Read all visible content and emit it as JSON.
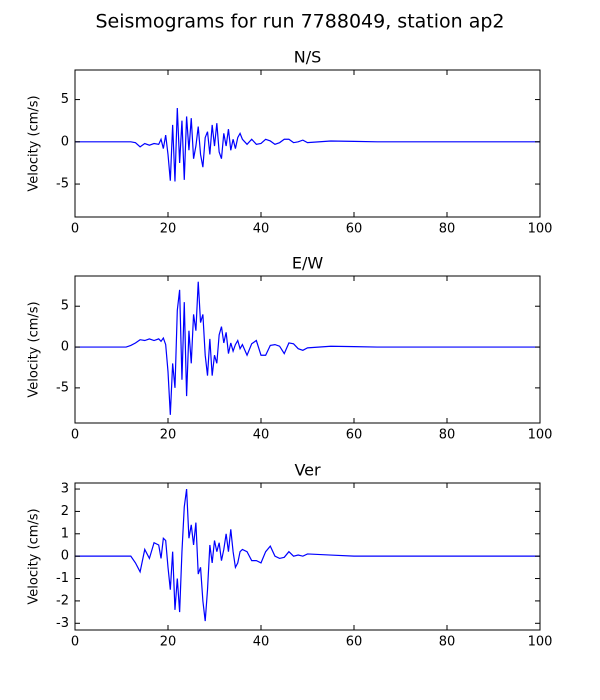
{
  "title": "Seismograms for run 7788049, station ap2",
  "chart_data": [
    {
      "type": "line",
      "title": "N/S",
      "ylabel": "Velocity (cm/s)",
      "color": "#0000ff",
      "xlim": [
        0,
        100
      ],
      "ylim": [
        -8.9,
        8.5
      ],
      "xticks": [
        0,
        20,
        40,
        60,
        80,
        100
      ],
      "yticks": [
        -5,
        0,
        5
      ],
      "x": [
        0,
        5,
        10,
        11,
        12,
        13,
        14,
        15,
        16,
        17,
        18,
        18.5,
        19,
        19.5,
        20,
        20.5,
        21,
        21.5,
        22,
        22.5,
        23,
        23.5,
        24,
        24.5,
        25,
        25.5,
        26,
        26.5,
        27,
        27.5,
        28,
        28.5,
        29,
        29.5,
        30,
        30.5,
        31,
        31.5,
        32,
        32.5,
        33,
        33.5,
        34,
        34.5,
        35,
        35.5,
        36,
        37,
        38,
        39,
        40,
        41,
        42,
        43,
        44,
        45,
        46,
        47,
        48,
        49,
        50,
        55,
        60,
        65,
        70,
        75,
        80,
        85,
        90,
        95,
        100
      ],
      "values": [
        0,
        0,
        0,
        0,
        0,
        -0.1,
        -0.6,
        -0.2,
        -0.4,
        -0.2,
        -0.3,
        0.3,
        -0.8,
        0.8,
        -1.5,
        -4.6,
        2.0,
        -4.7,
        4.0,
        -2.5,
        2.5,
        -4.5,
        3.0,
        -1.0,
        2.8,
        -2.0,
        -0.5,
        1.8,
        -1.5,
        -3.0,
        0.5,
        1.2,
        -1.5,
        2.0,
        -0.5,
        2.2,
        -1.2,
        -2.0,
        1.0,
        -0.5,
        1.5,
        -1.0,
        0.3,
        -0.8,
        0.5,
        1.0,
        0.3,
        -0.3,
        0.3,
        -0.3,
        -0.2,
        0.3,
        0.1,
        -0.3,
        -0.1,
        0.3,
        0.3,
        -0.1,
        0,
        0.2,
        -0.1,
        0.1,
        0.05,
        0,
        0,
        0,
        0,
        0,
        0,
        0,
        0
      ]
    },
    {
      "type": "line",
      "title": "E/W",
      "ylabel": "Velocity (cm/s)",
      "color": "#0000ff",
      "xlim": [
        0,
        100
      ],
      "ylim": [
        -9.3,
        8.7
      ],
      "xticks": [
        0,
        20,
        40,
        60,
        80,
        100
      ],
      "yticks": [
        -5,
        0,
        5
      ],
      "x": [
        0,
        5,
        10,
        11,
        12,
        13,
        14,
        15,
        16,
        17,
        18,
        18.5,
        19,
        19.5,
        20,
        20.5,
        21,
        21.5,
        22,
        22.5,
        23,
        23.5,
        24,
        24.5,
        25,
        25.5,
        26,
        26.5,
        27,
        27.5,
        28,
        28.5,
        29,
        29.5,
        30,
        30.5,
        31,
        31.5,
        32,
        32.5,
        33,
        33.5,
        34,
        34.5,
        35,
        35.5,
        36,
        37,
        38,
        39,
        40,
        41,
        42,
        43,
        44,
        45,
        46,
        47,
        48,
        49,
        50,
        55,
        60,
        65,
        70,
        75,
        80,
        85,
        90,
        95,
        100
      ],
      "values": [
        0,
        0,
        0,
        0,
        0.2,
        0.5,
        0.9,
        0.8,
        1.0,
        0.8,
        1.0,
        0.7,
        1.1,
        0.3,
        -3.0,
        -8.3,
        -2.0,
        -5.0,
        4.5,
        7.0,
        -4.0,
        5.5,
        -6.0,
        2.0,
        -2.0,
        4.0,
        2.0,
        8.0,
        3.0,
        4.0,
        -1.0,
        -3.5,
        1.0,
        -3.5,
        -1.0,
        -2.0,
        1.5,
        2.5,
        0.5,
        1.8,
        -0.8,
        0.5,
        -0.5,
        0.3,
        0.8,
        -0.2,
        0.3,
        -1.0,
        0.4,
        0.8,
        -1.0,
        -1.0,
        0.2,
        0.3,
        0.1,
        -0.8,
        0.5,
        0.4,
        -0.2,
        -0.4,
        -0.1,
        0.1,
        0.05,
        0,
        0,
        0,
        0,
        0,
        0,
        0,
        0
      ]
    },
    {
      "type": "line",
      "title": "Ver",
      "ylabel": "Velocity (cm/s)",
      "color": "#0000ff",
      "xlim": [
        0,
        100
      ],
      "ylim": [
        -3.3,
        3.27
      ],
      "xticks": [
        0,
        20,
        40,
        60,
        80,
        100
      ],
      "yticks": [
        -3,
        -2,
        -1,
        0,
        1,
        2,
        3
      ],
      "x": [
        0,
        5,
        10,
        11,
        12,
        13,
        14,
        15,
        16,
        17,
        18,
        18.5,
        19,
        19.5,
        20,
        20.5,
        21,
        21.5,
        22,
        22.5,
        23,
        23.5,
        24,
        24.5,
        25,
        25.5,
        26,
        26.5,
        27,
        27.5,
        28,
        28.5,
        29,
        29.5,
        30,
        30.5,
        31,
        31.5,
        32,
        32.5,
        33,
        33.5,
        34,
        34.5,
        35,
        35.5,
        36,
        37,
        38,
        39,
        40,
        41,
        42,
        43,
        44,
        45,
        46,
        47,
        48,
        49,
        50,
        55,
        60,
        65,
        70,
        75,
        80,
        85,
        90,
        95,
        100
      ],
      "values": [
        0,
        0,
        0,
        0,
        0,
        -0.3,
        -0.7,
        0.3,
        -0.1,
        0.6,
        0.5,
        -0.1,
        0.8,
        0.7,
        -0.5,
        -1.5,
        0.2,
        -2.4,
        -1.0,
        -2.5,
        0.2,
        2.2,
        3.0,
        0.8,
        1.4,
        0.5,
        1.5,
        -0.8,
        -0.5,
        -2.0,
        -2.9,
        -1.5,
        0.5,
        -0.3,
        0.7,
        0.2,
        0.6,
        -0.2,
        0.3,
        1.0,
        0.2,
        1.2,
        0.2,
        -0.5,
        -0.3,
        0.2,
        0.3,
        0.2,
        -0.2,
        -0.2,
        -0.3,
        0.2,
        0.45,
        0,
        -0.1,
        -0.05,
        0.2,
        0,
        0.05,
        0,
        0.1,
        0.05,
        0,
        0,
        0,
        0,
        0,
        0,
        0,
        0,
        0
      ]
    }
  ]
}
